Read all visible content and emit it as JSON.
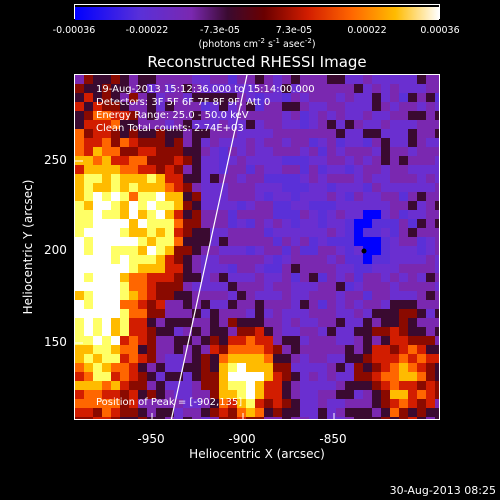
{
  "colorbar": {
    "ticks": [
      "-0.00036",
      "-0.00022",
      "-7.3e-05",
      "7.3e-05",
      "0.00022",
      "0.00036"
    ],
    "units_main": "(photons cm",
    "units_sup1": "-2",
    "units_mid1": " s",
    "units_sup2": "-1",
    "units_mid2": " asec",
    "units_sup3": "-2",
    "units_end": ")"
  },
  "title": "Reconstructed RHESSI Image",
  "info": {
    "time_range": "19-Aug-2013 15:12:36.000 to 15:14:00.000",
    "detectors": "Detectors: 3F 5F 6F 7F 8F 9F, Att 0",
    "energy": "Energy Range: 25.0 - 50.0 keV",
    "method": "Clean    Total counts: 2.74E+03",
    "peak": "Position of Peak = [-902,135]"
  },
  "axes": {
    "xlabel": "Heliocentric X (arcsec)",
    "ylabel": "Heliocentric Y (arcsec)",
    "xticks": [
      "-950",
      "-900",
      "-850"
    ],
    "yticks": [
      "250",
      "200",
      "150"
    ]
  },
  "footer_date": "30-Aug-2013 08:25",
  "colors": {
    "colormap": [
      "#0000ff",
      "#5a30d8",
      "#6a2fd0",
      "#7a28b0",
      "#3a0a30",
      "#8a0a00",
      "#d21d00",
      "#ff6600",
      "#ffbb00",
      "#ffff66",
      "#ffffff"
    ]
  }
}
